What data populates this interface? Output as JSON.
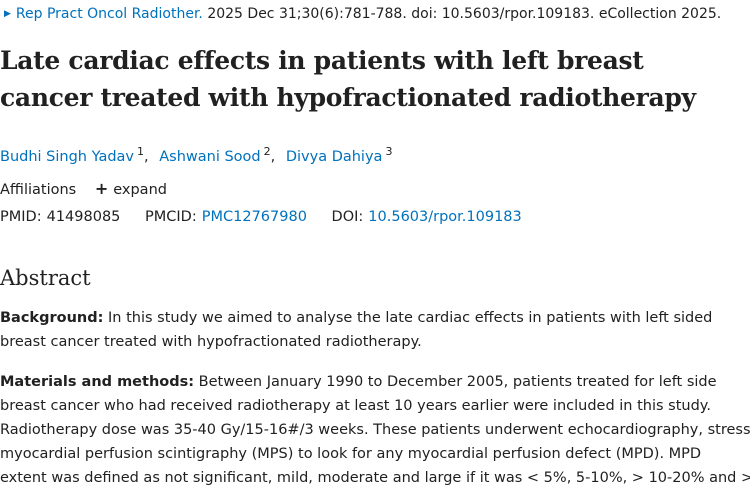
{
  "citation": {
    "journal": "Rep Pract Oncol Radiother.",
    "details": "2025 Dec 31;30(6):781-788. doi: 10.5603/rpor.109183. eCollection 2025."
  },
  "article": {
    "title_line1": "Late cardiac effects in patients with left breast",
    "title_line2": "cancer treated with hypofractionated radiotherapy"
  },
  "authors": [
    {
      "name": "Budhi Singh Yadav",
      "aff": "1"
    },
    {
      "name": "Ashwani Sood",
      "aff": "2"
    },
    {
      "name": "Divya Dahiya",
      "aff": "3"
    }
  ],
  "affiliations": {
    "label": "Affiliations",
    "expand_label": "expand"
  },
  "identifiers": {
    "pmid_label": "PMID:",
    "pmid": "41498085",
    "pmcid_label": "PMCID:",
    "pmcid": "PMC12767980",
    "doi_label": "DOI:",
    "doi": "10.5603/rpor.109183"
  },
  "abstract": {
    "heading": "Abstract",
    "background_label": "Background:",
    "background_lines": [
      " In this study we aimed to analyse the late cardiac effects in patients with left sided",
      "breast cancer treated with hypofractionated radiotherapy."
    ],
    "methods_label": "Materials and methods:",
    "methods_lines": [
      " Between January 1990 to December 2005, patients treated for left side",
      "breast cancer who had received radiotherapy at least 10 years earlier were included in this study.",
      "Radiotherapy dose was 35-40 Gy/15-16#/3 weeks. These patients underwent echocardiography, stress",
      "myocardial perfusion scintigraphy (MPS) to look for any myocardial perfusion defect (MPD). MPD",
      "extent was defined as not significant, mild, moderate and large if it was < 5%, 5-10%, > 10-20% and >"
    ]
  }
}
